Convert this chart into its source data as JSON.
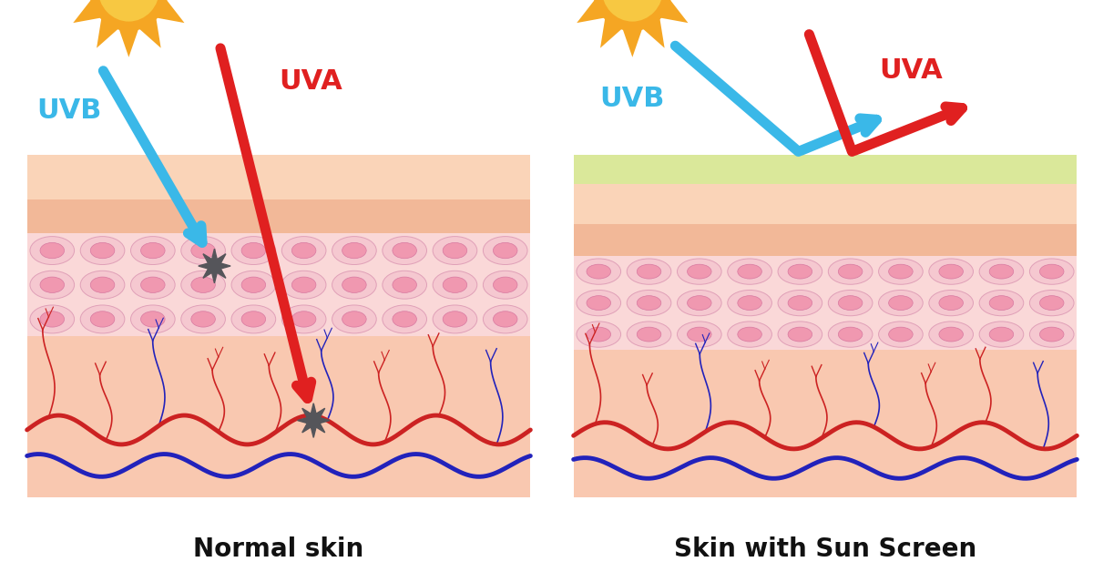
{
  "background_color": "#ffffff",
  "title_left": "Normal skin",
  "title_right": "Skin with Sun Screen",
  "title_fontsize": 20,
  "uvb_color": "#3ab8e8",
  "uva_color": "#e02020",
  "uvb_label": "UVB",
  "uva_label": "UVA",
  "label_fontsize": 22,
  "sun_color_outer": "#f5a623",
  "sun_color_inner": "#f7c842",
  "sunscreen_color": "#dae89a",
  "cell_outer_color": "#f5c8d0",
  "cell_outer_edge": "#e8a8b8",
  "cell_inner_color": "#f09ab0",
  "cell_inner_edge": "#e080a0",
  "layer1_color": "#f9d4bc",
  "layer2_color": "#f5c0a0",
  "layer3_bg": "#f8d8d8",
  "dermis_color": "#f9c8b0",
  "ray_lw": 8,
  "vessel_red": "#cc2222",
  "vessel_blue": "#2222bb"
}
